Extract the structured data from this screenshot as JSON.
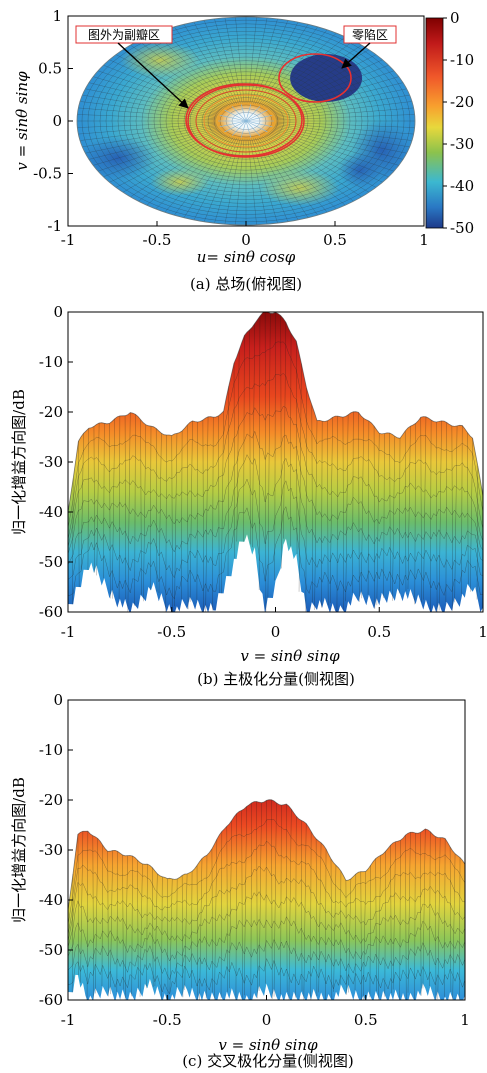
{
  "chart_data": [
    {
      "type": "heatmap",
      "panel": "a",
      "xlabel": "u= sinθ cosφ",
      "ylabel": "v = sinθ sinφ",
      "caption": "(a) 总场(俯视图)",
      "xlim": [
        -1,
        1
      ],
      "ylim": [
        -1,
        1
      ],
      "xticks": [
        "-1",
        "-0.5",
        "0",
        "0.5",
        "1"
      ],
      "yticks": [
        "1",
        "0.5",
        "0",
        "-0.5",
        "-1"
      ],
      "colorbar": {
        "range": [
          -50,
          0
        ],
        "ticks": [
          "0",
          "-10",
          "-20",
          "-30",
          "-40",
          "-50"
        ]
      },
      "annotations": [
        {
          "text": "图外为副瓣区",
          "target_u": -0.36,
          "target_v": 0.08
        },
        {
          "text": "零陷区",
          "target_u": 0.55,
          "target_v": 0.48
        }
      ],
      "null_region": {
        "u": 0.45,
        "v": 0.36
      }
    },
    {
      "type": "area",
      "panel": "b",
      "xlabel": "v = sinθ sinφ",
      "ylabel": "归一化增益方向图/dB",
      "caption": "(b) 主极化分量(侧视图)",
      "xlim": [
        -1,
        1
      ],
      "ylim": [
        -60,
        0
      ],
      "xticks": [
        "-1",
        "-0.5",
        "0",
        "0.5",
        "1"
      ],
      "yticks": [
        "0",
        "-10",
        "-20",
        "-30",
        "-40",
        "-50",
        "-60"
      ],
      "x": [
        -1,
        -0.95,
        -0.9,
        -0.8,
        -0.7,
        -0.6,
        -0.5,
        -0.4,
        -0.3,
        -0.25,
        -0.2,
        -0.15,
        -0.1,
        -0.05,
        0,
        0.05,
        0.1,
        0.15,
        0.2,
        0.3,
        0.4,
        0.5,
        0.6,
        0.7,
        0.8,
        0.9,
        0.95,
        1
      ],
      "upper": [
        -40,
        -26,
        -23,
        -22,
        -20,
        -23,
        -25,
        -22,
        -21,
        -20,
        -10,
        -5,
        -2,
        0,
        0,
        -2,
        -6,
        -15,
        -22,
        -21,
        -20,
        -24,
        -25,
        -21,
        -22,
        -23,
        -25,
        -37
      ],
      "lower": [
        -60,
        -55,
        -50,
        -56,
        -60,
        -55,
        -60,
        -58,
        -60,
        -55,
        -50,
        -45,
        -48,
        -60,
        -55,
        -45,
        -50,
        -60,
        -58,
        -60,
        -57,
        -58,
        -56,
        -58,
        -60,
        -57,
        -55,
        -60
      ]
    },
    {
      "type": "area",
      "panel": "c",
      "xlabel": "v = sinθ sinφ",
      "ylabel": "归一化增益方向图/dB",
      "caption": "(c) 交叉极化分量(侧视图)",
      "xlim": [
        -1,
        1
      ],
      "ylim": [
        -60,
        0
      ],
      "xticks": [
        "-1",
        "-0.5",
        "0",
        "0.5",
        "1"
      ],
      "yticks": [
        "0",
        "-10",
        "-20",
        "-30",
        "-40",
        "-50",
        "-60"
      ],
      "x": [
        -1,
        -0.95,
        -0.9,
        -0.8,
        -0.7,
        -0.6,
        -0.5,
        -0.4,
        -0.3,
        -0.2,
        -0.1,
        0,
        0.1,
        0.2,
        0.3,
        0.4,
        0.5,
        0.6,
        0.7,
        0.8,
        0.9,
        1
      ],
      "upper": [
        -42,
        -27,
        -26,
        -30,
        -31,
        -33,
        -36,
        -35,
        -31,
        -25,
        -21,
        -20,
        -21,
        -25,
        -30,
        -36,
        -34,
        -30,
        -27,
        -26,
        -28,
        -33
      ],
      "lower": [
        -60,
        -55,
        -60,
        -58,
        -60,
        -57,
        -60,
        -58,
        -60,
        -59,
        -60,
        -58,
        -60,
        -59,
        -60,
        -58,
        -60,
        -59,
        -60,
        -58,
        -60,
        -60
      ]
    }
  ],
  "colors": {
    "dark_red": "#7f0000",
    "red": "#e8261e",
    "orange": "#f89628",
    "yellow": "#ecd23a",
    "green": "#8fc04a",
    "cyan": "#36b5d8",
    "blue": "#2262b4",
    "navy": "#1c2a6e"
  }
}
